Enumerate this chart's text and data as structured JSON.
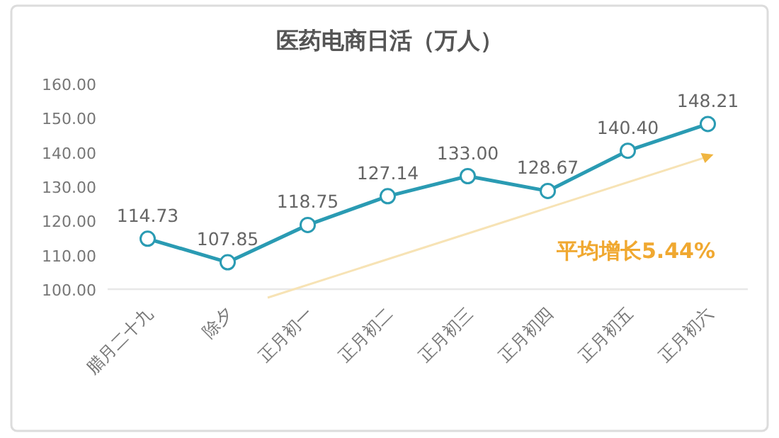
{
  "chart_data": {
    "type": "line",
    "title": "医药电商日活（万人）",
    "categories": [
      "腊月二十九",
      "除夕",
      "正月初一",
      "正月初二",
      "正月初三",
      "正月初四",
      "正月初五",
      "正月初六"
    ],
    "series": [
      {
        "color": "#2a9bb3",
        "values": [
          114.73,
          107.85,
          118.75,
          127.14,
          133.0,
          128.67,
          140.4,
          148.21
        ],
        "value_labels": [
          "114.73",
          "107.85",
          "118.75",
          "127.14",
          "133.00",
          "128.67",
          "140.40",
          "148.21"
        ]
      }
    ],
    "ylim": [
      100,
      160
    ],
    "yticks": [
      {
        "value": 100,
        "label": "100.00"
      },
      {
        "value": 110,
        "label": "110.00"
      },
      {
        "value": 120,
        "label": "120.00"
      },
      {
        "value": 130,
        "label": "130.00"
      },
      {
        "value": 140,
        "label": "140.00"
      },
      {
        "value": 150,
        "label": "150.00"
      },
      {
        "value": 160,
        "label": "160.00"
      }
    ],
    "grid": false,
    "marker": "circle",
    "line_style": "solid",
    "annotations": [
      "平均增长5.44%"
    ]
  }
}
